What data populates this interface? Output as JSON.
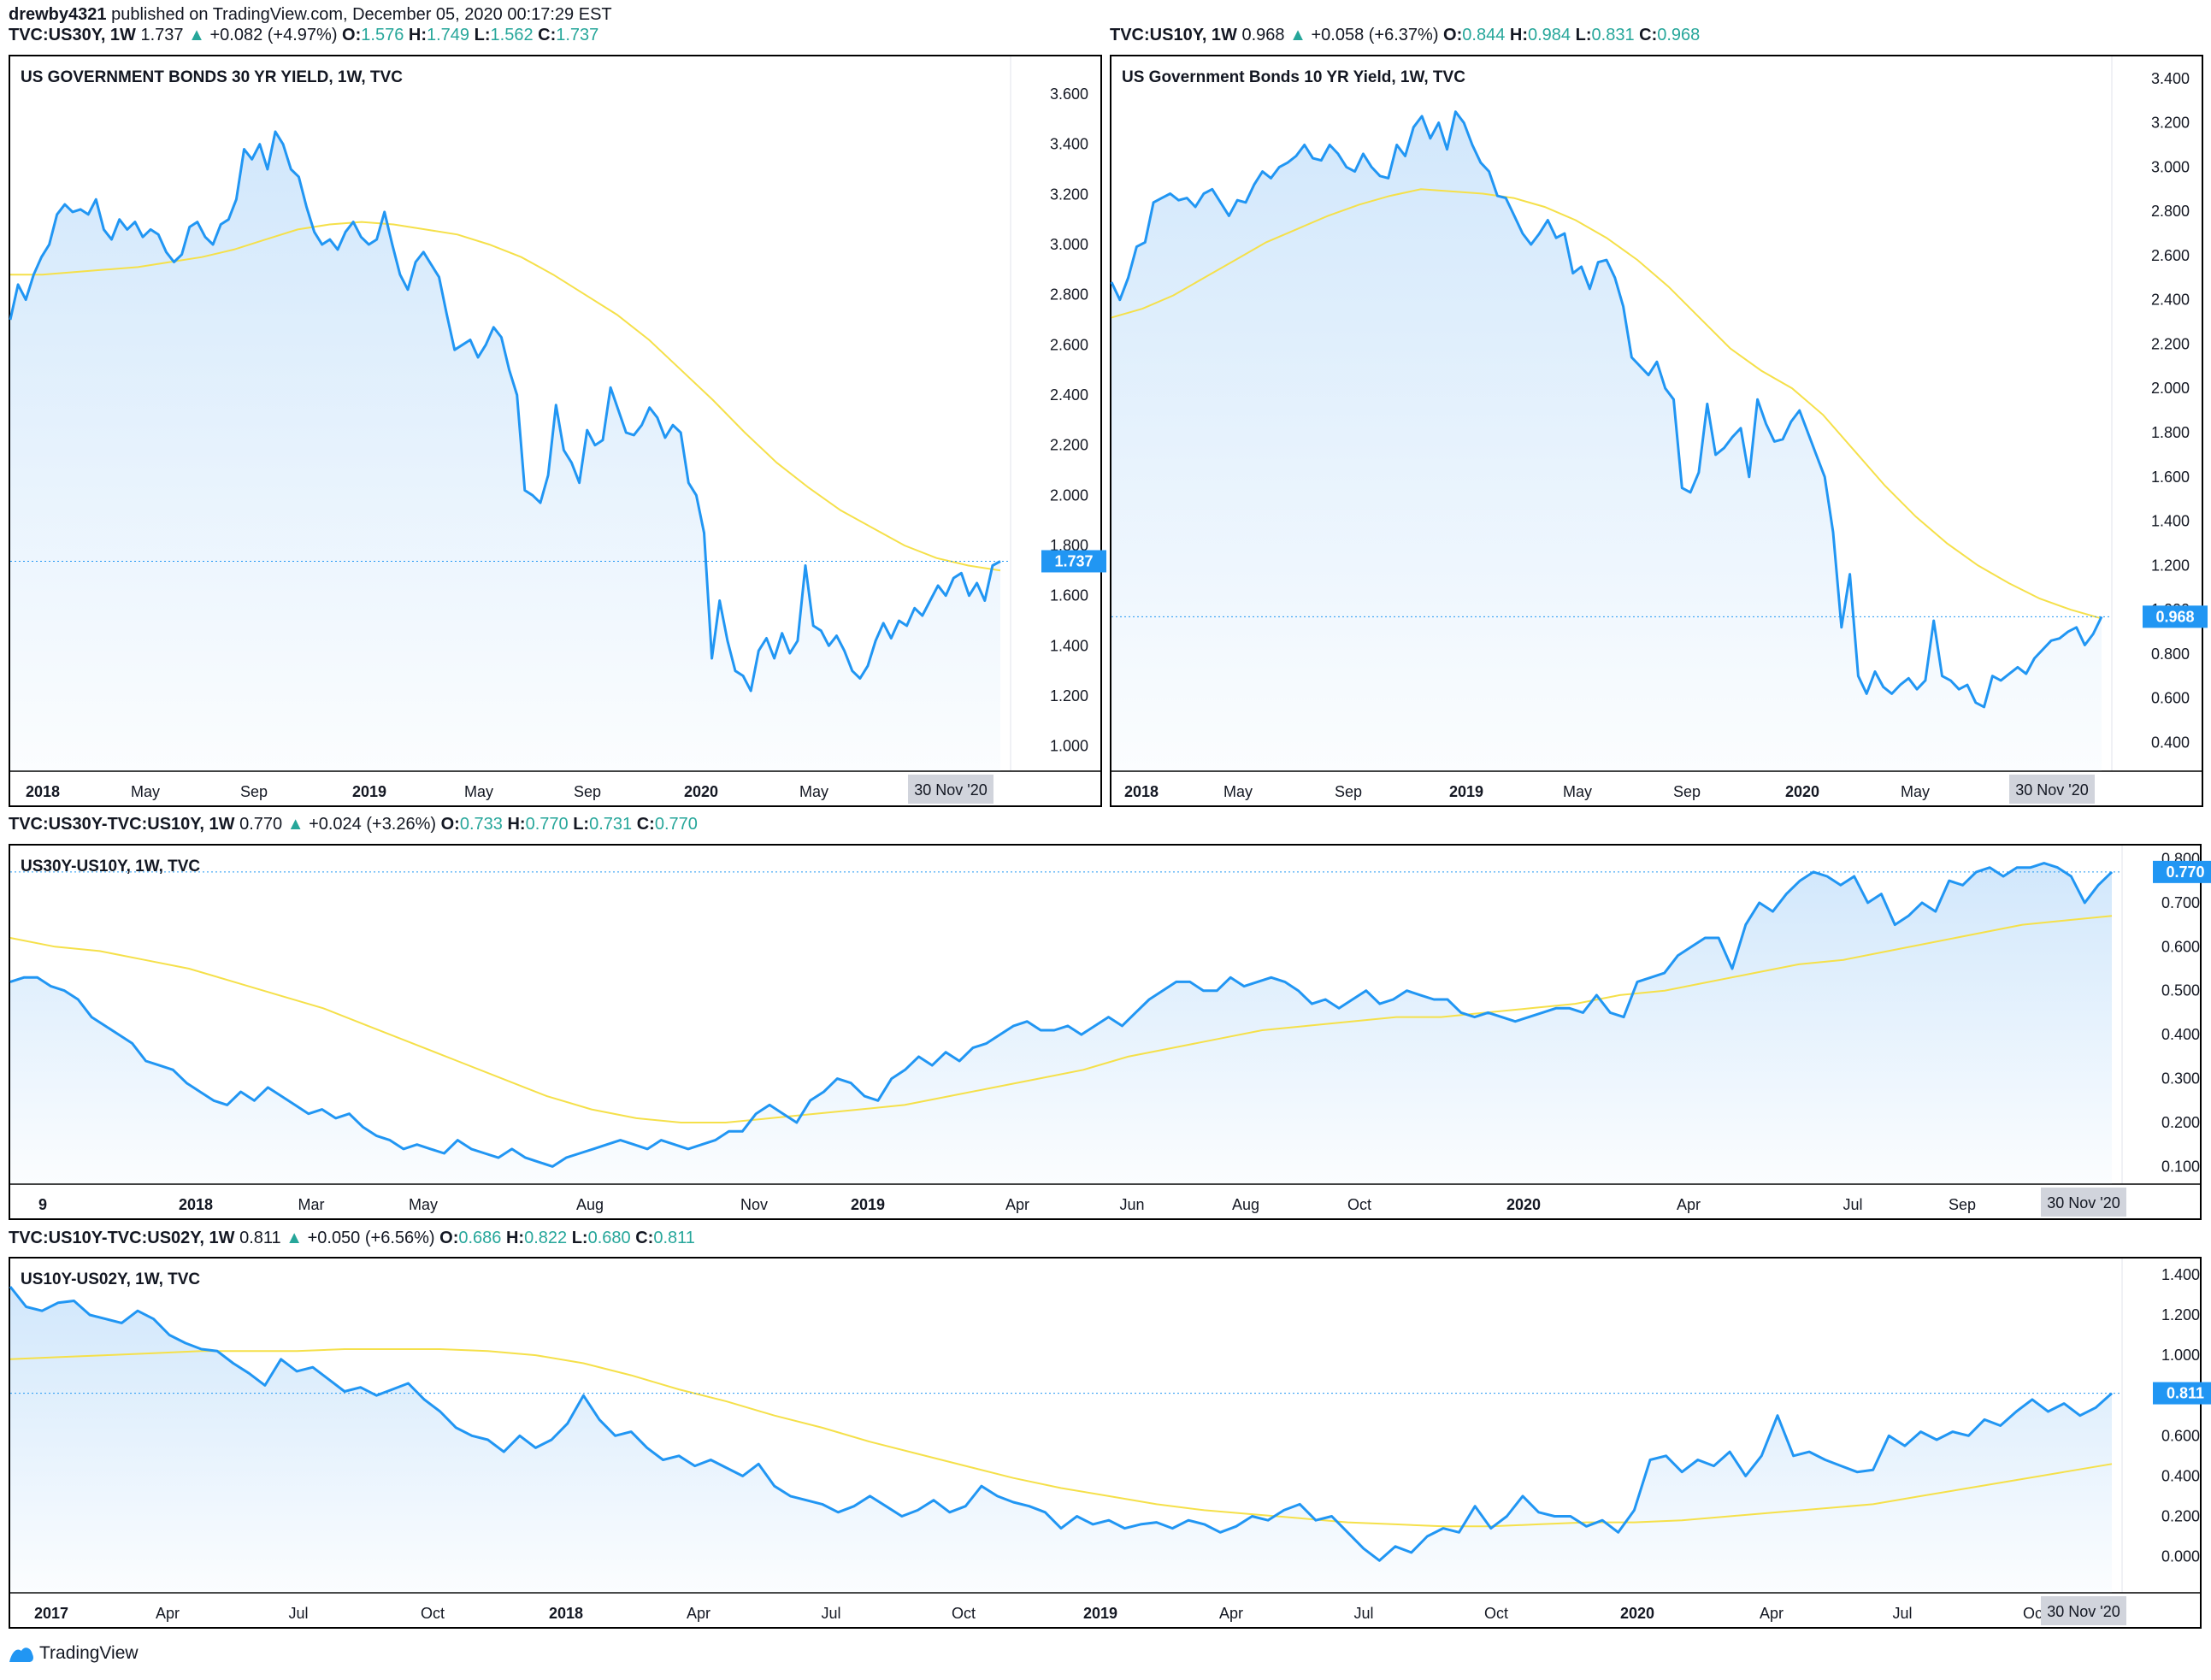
{
  "published": {
    "author": "drewby4321",
    "text": "published on TradingView.com, December 05, 2020 00:17:29 EST"
  },
  "footer": {
    "brand": "TradingView"
  },
  "colors": {
    "line": "#2196f3",
    "ma": "#ffeb3b",
    "fill": "#cfe6fb",
    "badge": "#2196f3",
    "up": "#26a69a"
  },
  "panels": [
    {
      "id": "p30",
      "header": {
        "sym": "TVC:US30Y, 1W",
        "last": "1.737",
        "change": "+0.082 (+4.97%)",
        "o": "1.576",
        "h": "1.749",
        "l": "1.562",
        "c": "1.737"
      },
      "title": "US GOVERNMENT BONDS 30 YR YIELD, 1W, TVC",
      "last_badge": "1.737",
      "date_badge": "30 Nov '20",
      "xlabels": [
        {
          "t": "2018",
          "b": true
        },
        {
          "t": "May",
          "b": false
        },
        {
          "t": "Sep",
          "b": false
        },
        {
          "t": "2019",
          "b": true
        },
        {
          "t": "May",
          "b": false
        },
        {
          "t": "Sep",
          "b": false
        },
        {
          "t": "2020",
          "b": true
        },
        {
          "t": "May",
          "b": false
        },
        {
          "t": "Sep",
          "b": false
        }
      ]
    },
    {
      "id": "p10",
      "header": {
        "sym": "TVC:US10Y, 1W",
        "last": "0.968",
        "change": "+0.058 (+6.37%)",
        "o": "0.844",
        "h": "0.984",
        "l": "0.831",
        "c": "0.968"
      },
      "title": "US Government Bonds 10 YR Yield, 1W, TVC",
      "last_badge": "0.968",
      "date_badge": "30 Nov '20",
      "xlabels": [
        {
          "t": "2018",
          "b": true
        },
        {
          "t": "May",
          "b": false
        },
        {
          "t": "Sep",
          "b": false
        },
        {
          "t": "2019",
          "b": true
        },
        {
          "t": "May",
          "b": false
        },
        {
          "t": "Sep",
          "b": false
        },
        {
          "t": "2020",
          "b": true
        },
        {
          "t": "May",
          "b": false
        },
        {
          "t": "Sep",
          "b": false
        }
      ]
    },
    {
      "id": "p3010",
      "header": {
        "sym": "TVC:US30Y-TVC:US10Y, 1W",
        "last": "0.770",
        "change": "+0.024 (+3.26%)",
        "o": "0.733",
        "h": "0.770",
        "l": "0.731",
        "c": "0.770"
      },
      "title": "US30Y-US10Y, 1W, TVC",
      "last_badge": "0.770",
      "date_badge": "30 Nov '20",
      "xlabels": [
        {
          "t": "9",
          "b": true
        },
        {
          "t": "2018",
          "b": true
        },
        {
          "t": "Mar",
          "b": false
        },
        {
          "t": "May",
          "b": false
        },
        {
          "t": "Aug",
          "b": false
        },
        {
          "t": "Nov",
          "b": false
        },
        {
          "t": "2019",
          "b": true
        },
        {
          "t": "Apr",
          "b": false
        },
        {
          "t": "Jun",
          "b": false
        },
        {
          "t": "Aug",
          "b": false
        },
        {
          "t": "Oct",
          "b": false
        },
        {
          "t": "2020",
          "b": true
        },
        {
          "t": "Apr",
          "b": false
        },
        {
          "t": "Jul",
          "b": false
        },
        {
          "t": "Sep",
          "b": false
        }
      ]
    },
    {
      "id": "p1002",
      "header": {
        "sym": "TVC:US10Y-TVC:US02Y, 1W",
        "last": "0.811",
        "change": "+0.050 (+6.56%)",
        "o": "0.686",
        "h": "0.822",
        "l": "0.680",
        "c": "0.811"
      },
      "title": "US10Y-US02Y, 1W, TVC",
      "last_badge": "0.811",
      "date_badge": "30 Nov '20",
      "xlabels": [
        {
          "t": "2017",
          "b": true
        },
        {
          "t": "Apr",
          "b": false
        },
        {
          "t": "Jul",
          "b": false
        },
        {
          "t": "Oct",
          "b": false
        },
        {
          "t": "2018",
          "b": true
        },
        {
          "t": "Apr",
          "b": false
        },
        {
          "t": "Jul",
          "b": false
        },
        {
          "t": "Oct",
          "b": false
        },
        {
          "t": "2019",
          "b": true
        },
        {
          "t": "Apr",
          "b": false
        },
        {
          "t": "Jul",
          "b": false
        },
        {
          "t": "Oct",
          "b": false
        },
        {
          "t": "2020",
          "b": true
        },
        {
          "t": "Apr",
          "b": false
        },
        {
          "t": "Jul",
          "b": false
        },
        {
          "t": "Oct",
          "b": false
        }
      ]
    }
  ],
  "chart_data": [
    {
      "type": "area",
      "title": "US GOVERNMENT BONDS 30 YR YIELD, 1W, TVC",
      "ylim": [
        0.9,
        3.75
      ],
      "yticks": [
        "1.000",
        "1.200",
        "1.400",
        "1.600",
        "1.800",
        "2.000",
        "2.200",
        "2.400",
        "2.600",
        "2.800",
        "3.000",
        "3.200",
        "3.400",
        "3.600"
      ],
      "series": [
        {
          "name": "TVC:US30Y",
          "values": [
            2.7,
            2.84,
            2.78,
            2.88,
            2.95,
            3.0,
            3.12,
            3.16,
            3.13,
            3.14,
            3.12,
            3.18,
            3.06,
            3.02,
            3.1,
            3.06,
            3.09,
            3.03,
            3.06,
            3.04,
            2.97,
            2.93,
            2.96,
            3.07,
            3.09,
            3.03,
            3.0,
            3.08,
            3.1,
            3.18,
            3.38,
            3.34,
            3.4,
            3.3,
            3.45,
            3.4,
            3.3,
            3.27,
            3.15,
            3.05,
            3.0,
            3.02,
            2.98,
            3.05,
            3.09,
            3.03,
            3.0,
            3.02,
            3.13,
            3.0,
            2.88,
            2.82,
            2.93,
            2.97,
            2.92,
            2.87,
            2.72,
            2.58,
            2.6,
            2.62,
            2.55,
            2.6,
            2.67,
            2.63,
            2.5,
            2.4,
            2.02,
            2.0,
            1.97,
            2.08,
            2.36,
            2.18,
            2.13,
            2.05,
            2.26,
            2.2,
            2.22,
            2.43,
            2.34,
            2.25,
            2.24,
            2.28,
            2.35,
            2.31,
            2.23,
            2.28,
            2.25,
            2.05,
            2.0,
            1.85,
            1.35,
            1.58,
            1.42,
            1.3,
            1.28,
            1.22,
            1.38,
            1.43,
            1.35,
            1.45,
            1.37,
            1.42,
            1.72,
            1.48,
            1.46,
            1.4,
            1.44,
            1.38,
            1.3,
            1.27,
            1.32,
            1.42,
            1.49,
            1.43,
            1.5,
            1.48,
            1.55,
            1.52,
            1.58,
            1.64,
            1.6,
            1.67,
            1.69,
            1.6,
            1.65,
            1.58,
            1.72,
            1.737
          ]
        },
        {
          "name": "MA",
          "values": [
            2.88,
            2.88,
            2.89,
            2.9,
            2.91,
            2.93,
            2.95,
            2.98,
            3.02,
            3.06,
            3.08,
            3.09,
            3.08,
            3.06,
            3.04,
            3.0,
            2.95,
            2.88,
            2.8,
            2.72,
            2.62,
            2.5,
            2.38,
            2.25,
            2.13,
            2.03,
            1.94,
            1.87,
            1.8,
            1.75,
            1.72,
            1.7
          ]
        }
      ]
    },
    {
      "type": "area",
      "title": "US Government Bonds 10 YR Yield, 1W, TVC",
      "ylim": [
        0.27,
        3.5
      ],
      "yticks": [
        "0.400",
        "0.600",
        "0.800",
        "1.000",
        "1.200",
        "1.400",
        "1.600",
        "1.800",
        "2.000",
        "2.200",
        "2.400",
        "2.600",
        "2.800",
        "3.000",
        "3.200",
        "3.400"
      ],
      "series": [
        {
          "name": "TVC:US10Y",
          "values": [
            2.48,
            2.4,
            2.5,
            2.64,
            2.66,
            2.84,
            2.86,
            2.88,
            2.85,
            2.86,
            2.82,
            2.88,
            2.9,
            2.84,
            2.78,
            2.85,
            2.84,
            2.92,
            2.98,
            2.95,
            3.0,
            3.02,
            3.05,
            3.1,
            3.04,
            3.03,
            3.1,
            3.06,
            3.0,
            2.98,
            3.06,
            3.0,
            2.96,
            2.95,
            3.1,
            3.05,
            3.18,
            3.23,
            3.13,
            3.2,
            3.08,
            3.25,
            3.2,
            3.1,
            3.02,
            2.98,
            2.87,
            2.86,
            2.78,
            2.7,
            2.65,
            2.7,
            2.76,
            2.68,
            2.7,
            2.52,
            2.55,
            2.45,
            2.57,
            2.58,
            2.5,
            2.37,
            2.14,
            2.1,
            2.06,
            2.12,
            2.0,
            1.95,
            1.55,
            1.53,
            1.62,
            1.93,
            1.7,
            1.73,
            1.78,
            1.82,
            1.6,
            1.95,
            1.84,
            1.76,
            1.77,
            1.85,
            1.9,
            1.8,
            1.7,
            1.6,
            1.35,
            0.92,
            1.16,
            0.7,
            0.62,
            0.72,
            0.65,
            0.62,
            0.66,
            0.69,
            0.64,
            0.68,
            0.95,
            0.7,
            0.68,
            0.64,
            0.66,
            0.58,
            0.56,
            0.7,
            0.68,
            0.71,
            0.74,
            0.71,
            0.78,
            0.82,
            0.86,
            0.87,
            0.9,
            0.92,
            0.84,
            0.89,
            0.968
          ]
        },
        {
          "name": "MA",
          "values": [
            2.32,
            2.36,
            2.42,
            2.5,
            2.58,
            2.66,
            2.72,
            2.78,
            2.83,
            2.87,
            2.9,
            2.89,
            2.88,
            2.86,
            2.82,
            2.76,
            2.68,
            2.58,
            2.46,
            2.32,
            2.18,
            2.08,
            2.0,
            1.88,
            1.72,
            1.56,
            1.42,
            1.3,
            1.2,
            1.12,
            1.05,
            1.0,
            0.96
          ]
        }
      ]
    },
    {
      "type": "area",
      "title": "US30Y-US10Y, 1W, TVC",
      "ylim": [
        0.06,
        0.83
      ],
      "yticks": [
        "0.100",
        "0.200",
        "0.300",
        "0.400",
        "0.500",
        "0.600",
        "0.700",
        "0.800"
      ],
      "series": [
        {
          "name": "TVC:US30Y-TVC:US10Y",
          "values": [
            0.52,
            0.53,
            0.53,
            0.51,
            0.5,
            0.48,
            0.44,
            0.42,
            0.4,
            0.38,
            0.34,
            0.33,
            0.32,
            0.29,
            0.27,
            0.25,
            0.24,
            0.27,
            0.25,
            0.28,
            0.26,
            0.24,
            0.22,
            0.23,
            0.21,
            0.22,
            0.19,
            0.17,
            0.16,
            0.14,
            0.15,
            0.14,
            0.13,
            0.16,
            0.14,
            0.13,
            0.12,
            0.14,
            0.12,
            0.11,
            0.1,
            0.12,
            0.13,
            0.14,
            0.15,
            0.16,
            0.15,
            0.14,
            0.16,
            0.15,
            0.14,
            0.15,
            0.16,
            0.18,
            0.18,
            0.22,
            0.24,
            0.22,
            0.2,
            0.25,
            0.27,
            0.3,
            0.29,
            0.26,
            0.25,
            0.3,
            0.32,
            0.35,
            0.33,
            0.36,
            0.34,
            0.37,
            0.38,
            0.4,
            0.42,
            0.43,
            0.41,
            0.41,
            0.42,
            0.4,
            0.42,
            0.44,
            0.42,
            0.45,
            0.48,
            0.5,
            0.52,
            0.52,
            0.5,
            0.5,
            0.53,
            0.51,
            0.52,
            0.53,
            0.52,
            0.5,
            0.47,
            0.48,
            0.46,
            0.48,
            0.5,
            0.47,
            0.48,
            0.5,
            0.49,
            0.48,
            0.48,
            0.45,
            0.44,
            0.45,
            0.44,
            0.43,
            0.44,
            0.45,
            0.46,
            0.46,
            0.45,
            0.49,
            0.45,
            0.44,
            0.52,
            0.53,
            0.54,
            0.58,
            0.6,
            0.62,
            0.62,
            0.55,
            0.65,
            0.7,
            0.68,
            0.72,
            0.75,
            0.77,
            0.76,
            0.74,
            0.76,
            0.7,
            0.72,
            0.65,
            0.67,
            0.7,
            0.68,
            0.75,
            0.74,
            0.77,
            0.78,
            0.76,
            0.78,
            0.78,
            0.79,
            0.78,
            0.76,
            0.7,
            0.74,
            0.77
          ]
        },
        {
          "name": "MA",
          "values": [
            0.62,
            0.6,
            0.59,
            0.57,
            0.55,
            0.52,
            0.49,
            0.46,
            0.42,
            0.38,
            0.34,
            0.3,
            0.26,
            0.23,
            0.21,
            0.2,
            0.2,
            0.21,
            0.22,
            0.23,
            0.24,
            0.26,
            0.28,
            0.3,
            0.32,
            0.35,
            0.37,
            0.39,
            0.41,
            0.42,
            0.43,
            0.44,
            0.44,
            0.45,
            0.46,
            0.47,
            0.49,
            0.5,
            0.52,
            0.54,
            0.56,
            0.57,
            0.59,
            0.61,
            0.63,
            0.65,
            0.66,
            0.67
          ]
        }
      ]
    },
    {
      "type": "area",
      "title": "US10Y-US02Y, 1W, TVC",
      "ylim": [
        -0.18,
        1.48
      ],
      "yticks": [
        "0.000",
        "0.200",
        "0.400",
        "0.600",
        "0.800",
        "1.000",
        "1.200",
        "1.400"
      ],
      "series": [
        {
          "name": "TVC:US10Y-TVC:US02Y",
          "values": [
            1.34,
            1.24,
            1.22,
            1.26,
            1.27,
            1.2,
            1.18,
            1.16,
            1.22,
            1.18,
            1.1,
            1.06,
            1.03,
            1.02,
            0.96,
            0.91,
            0.85,
            0.98,
            0.92,
            0.94,
            0.88,
            0.82,
            0.84,
            0.8,
            0.83,
            0.86,
            0.78,
            0.72,
            0.64,
            0.6,
            0.58,
            0.52,
            0.6,
            0.54,
            0.58,
            0.66,
            0.8,
            0.68,
            0.6,
            0.62,
            0.54,
            0.48,
            0.5,
            0.45,
            0.48,
            0.44,
            0.4,
            0.46,
            0.35,
            0.3,
            0.28,
            0.26,
            0.22,
            0.25,
            0.3,
            0.25,
            0.2,
            0.23,
            0.28,
            0.22,
            0.25,
            0.35,
            0.3,
            0.27,
            0.25,
            0.22,
            0.14,
            0.2,
            0.16,
            0.18,
            0.14,
            0.16,
            0.17,
            0.14,
            0.18,
            0.16,
            0.12,
            0.15,
            0.2,
            0.18,
            0.23,
            0.26,
            0.18,
            0.2,
            0.12,
            0.04,
            -0.02,
            0.05,
            0.02,
            0.1,
            0.14,
            0.12,
            0.25,
            0.14,
            0.2,
            0.3,
            0.22,
            0.2,
            0.2,
            0.15,
            0.18,
            0.12,
            0.23,
            0.48,
            0.5,
            0.42,
            0.48,
            0.45,
            0.52,
            0.4,
            0.5,
            0.7,
            0.5,
            0.52,
            0.48,
            0.45,
            0.42,
            0.43,
            0.6,
            0.55,
            0.62,
            0.58,
            0.62,
            0.6,
            0.68,
            0.65,
            0.72,
            0.78,
            0.72,
            0.76,
            0.7,
            0.74,
            0.811
          ]
        },
        {
          "name": "MA",
          "values": [
            0.98,
            0.99,
            1.0,
            1.01,
            1.02,
            1.02,
            1.02,
            1.03,
            1.03,
            1.03,
            1.02,
            1.0,
            0.96,
            0.9,
            0.83,
            0.77,
            0.7,
            0.64,
            0.57,
            0.51,
            0.45,
            0.39,
            0.34,
            0.3,
            0.26,
            0.23,
            0.21,
            0.19,
            0.17,
            0.16,
            0.15,
            0.15,
            0.16,
            0.17,
            0.17,
            0.18,
            0.2,
            0.22,
            0.24,
            0.26,
            0.3,
            0.34,
            0.38,
            0.42,
            0.46
          ]
        }
      ]
    }
  ]
}
